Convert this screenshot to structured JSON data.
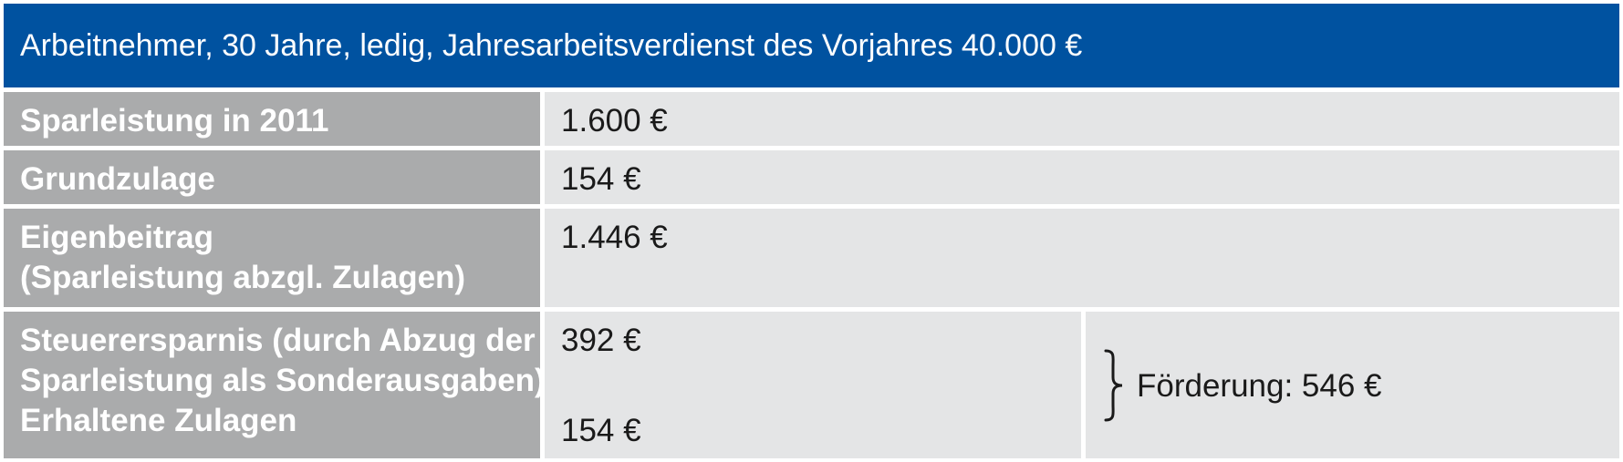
{
  "header": {
    "title": "Arbeitnehmer, 30 Jahre, ledig, Jahresarbeitsverdienst des Vorjahres 40.000 €"
  },
  "rows": [
    {
      "label": "Sparleistung in 2011",
      "value": "1.600 €"
    },
    {
      "label": "Grundzulage",
      "value": "154 €"
    },
    {
      "label_line1": "Eigenbeitrag",
      "label_line2": "(Sparleistung abzgl. Zulagen)",
      "value": "1.446 €"
    },
    {
      "label_line1": "Steuerersparnis (durch Abzug der",
      "label_line2": "Sparleistung als Sonderausgaben)",
      "label_line3": "Erhaltene Zulagen",
      "value_top": "392 €",
      "value_bottom": "154 €",
      "foerderung": "Förderung: 546 €"
    }
  ],
  "colors": {
    "header_bg": "#0052a0",
    "label_bg": "#aaabac",
    "value_bg": "#e4e5e6"
  },
  "icons": {
    "brace": "right-curly-brace-icon"
  }
}
